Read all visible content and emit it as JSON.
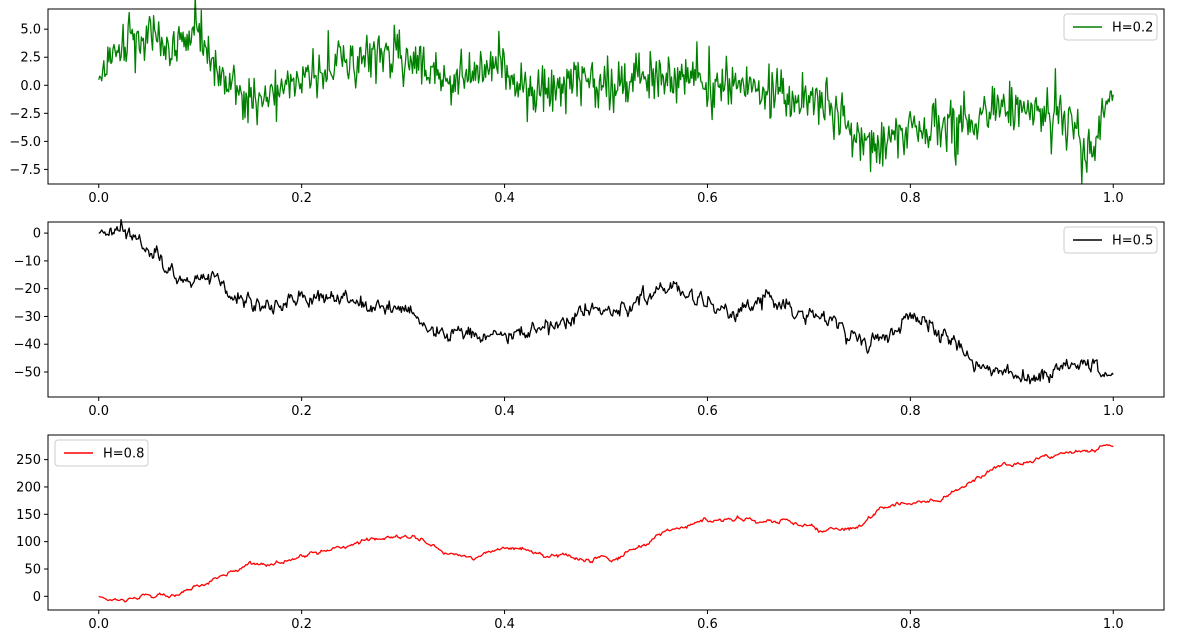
{
  "chart_data": [
    {
      "type": "line",
      "series": [
        {
          "name": "H=0.2",
          "color": "#008000",
          "x_range": [
            0,
            1
          ],
          "hurst": 0.2,
          "points": 1000,
          "anchors": [
            [
              0.0,
              0.5
            ],
            [
              0.01,
              2.5
            ],
            [
              0.03,
              3.5
            ],
            [
              0.05,
              5.0
            ],
            [
              0.07,
              3.0
            ],
            [
              0.095,
              5.2
            ],
            [
              0.12,
              1.0
            ],
            [
              0.15,
              -1.5
            ],
            [
              0.18,
              -0.5
            ],
            [
              0.2,
              0.5
            ],
            [
              0.23,
              1.5
            ],
            [
              0.26,
              2.5
            ],
            [
              0.3,
              3.0
            ],
            [
              0.33,
              1.0
            ],
            [
              0.36,
              0.5
            ],
            [
              0.4,
              1.5
            ],
            [
              0.42,
              -0.5
            ],
            [
              0.45,
              0.0
            ],
            [
              0.48,
              0.5
            ],
            [
              0.5,
              0.0
            ],
            [
              0.55,
              0.5
            ],
            [
              0.59,
              0.5
            ],
            [
              0.62,
              -0.5
            ],
            [
              0.66,
              -0.5
            ],
            [
              0.7,
              -1.5
            ],
            [
              0.72,
              -1.5
            ],
            [
              0.75,
              -5.0
            ],
            [
              0.8,
              -4.0
            ],
            [
              0.85,
              -3.5
            ],
            [
              0.88,
              -2.0
            ],
            [
              0.9,
              -1.5
            ],
            [
              0.93,
              -2.5
            ],
            [
              0.96,
              -3.0
            ],
            [
              0.975,
              -7.5
            ],
            [
              0.99,
              -2.5
            ],
            [
              1.0,
              -0.8
            ]
          ]
        }
      ],
      "legend_position": "upper right",
      "xlim": [
        -0.05,
        1.05
      ],
      "ylim": [
        -8.8,
        6.8
      ],
      "xticks": [
        0.0,
        0.2,
        0.4,
        0.6,
        0.8,
        1.0
      ],
      "xtick_labels": [
        "0.0",
        "0.2",
        "0.4",
        "0.6",
        "0.8",
        "1.0"
      ],
      "yticks": [
        5.0,
        2.5,
        0.0,
        -2.5,
        -5.0,
        -7.5
      ],
      "ytick_labels": [
        "5.0",
        "2.5",
        "0.0",
        "−2.5",
        "−5.0",
        "−7.5"
      ],
      "grid": false
    },
    {
      "type": "line",
      "series": [
        {
          "name": "H=0.5",
          "color": "#000000",
          "x_range": [
            0,
            1
          ],
          "hurst": 0.5,
          "points": 1000,
          "anchors": [
            [
              0.0,
              0.0
            ],
            [
              0.02,
              2.0
            ],
            [
              0.04,
              -2.0
            ],
            [
              0.06,
              -10.0
            ],
            [
              0.08,
              -18.0
            ],
            [
              0.11,
              -15.0
            ],
            [
              0.13,
              -22.0
            ],
            [
              0.17,
              -28.0
            ],
            [
              0.2,
              -22.0
            ],
            [
              0.25,
              -25.0
            ],
            [
              0.3,
              -27.0
            ],
            [
              0.33,
              -35.0
            ],
            [
              0.36,
              -36.0
            ],
            [
              0.4,
              -37.0
            ],
            [
              0.45,
              -33.0
            ],
            [
              0.48,
              -28.0
            ],
            [
              0.51,
              -27.0
            ],
            [
              0.56,
              -20.0
            ],
            [
              0.6,
              -25.0
            ],
            [
              0.63,
              -30.0
            ],
            [
              0.66,
              -22.0
            ],
            [
              0.69,
              -30.0
            ],
            [
              0.72,
              -30.0
            ],
            [
              0.76,
              -40.0
            ],
            [
              0.8,
              -29.0
            ],
            [
              0.84,
              -38.0
            ],
            [
              0.86,
              -46.0
            ],
            [
              0.89,
              -51.0
            ],
            [
              0.92,
              -53.0
            ],
            [
              0.95,
              -48.0
            ],
            [
              0.97,
              -46.0
            ],
            [
              0.99,
              -51.0
            ],
            [
              1.0,
              -51.0
            ]
          ]
        }
      ],
      "legend_position": "upper right",
      "xlim": [
        -0.05,
        1.05
      ],
      "ylim": [
        -59,
        4
      ],
      "xticks": [
        0.0,
        0.2,
        0.4,
        0.6,
        0.8,
        1.0
      ],
      "xtick_labels": [
        "0.0",
        "0.2",
        "0.4",
        "0.6",
        "0.8",
        "1.0"
      ],
      "yticks": [
        0,
        -10,
        -20,
        -30,
        -40,
        -50
      ],
      "ytick_labels": [
        "0",
        "−10",
        "−20",
        "−30",
        "−40",
        "−50"
      ],
      "grid": false
    },
    {
      "type": "line",
      "series": [
        {
          "name": "H=0.8",
          "color": "#ff0000",
          "x_range": [
            0,
            1
          ],
          "hurst": 0.8,
          "points": 1000,
          "anchors": [
            [
              0.0,
              0.0
            ],
            [
              0.02,
              -10.0
            ],
            [
              0.04,
              0.0
            ],
            [
              0.07,
              5.0
            ],
            [
              0.1,
              20.0
            ],
            [
              0.13,
              45.0
            ],
            [
              0.15,
              58.0
            ],
            [
              0.18,
              60.0
            ],
            [
              0.22,
              80.0
            ],
            [
              0.26,
              100.0
            ],
            [
              0.29,
              108.0
            ],
            [
              0.31,
              107.0
            ],
            [
              0.34,
              80.0
            ],
            [
              0.37,
              70.0
            ],
            [
              0.4,
              90.0
            ],
            [
              0.43,
              80.0
            ],
            [
              0.45,
              72.0
            ],
            [
              0.48,
              65.0
            ],
            [
              0.51,
              70.0
            ],
            [
              0.55,
              110.0
            ],
            [
              0.58,
              130.0
            ],
            [
              0.6,
              143.0
            ],
            [
              0.64,
              140.0
            ],
            [
              0.68,
              138.0
            ],
            [
              0.72,
              120.0
            ],
            [
              0.75,
              130.0
            ],
            [
              0.77,
              160.0
            ],
            [
              0.8,
              170.0
            ],
            [
              0.83,
              175.0
            ],
            [
              0.86,
              210.0
            ],
            [
              0.89,
              240.0
            ],
            [
              0.92,
              245.0
            ],
            [
              0.94,
              255.0
            ],
            [
              0.96,
              262.0
            ],
            [
              0.98,
              268.0
            ],
            [
              0.99,
              278.0
            ],
            [
              1.0,
              273.0
            ]
          ]
        }
      ],
      "legend_position": "upper left",
      "xlim": [
        -0.05,
        1.05
      ],
      "ylim": [
        -25,
        295
      ],
      "xticks": [
        0.0,
        0.2,
        0.4,
        0.6,
        0.8,
        1.0
      ],
      "xtick_labels": [
        "0.0",
        "0.2",
        "0.4",
        "0.6",
        "0.8",
        "1.0"
      ],
      "yticks": [
        250,
        200,
        150,
        100,
        50,
        0
      ],
      "ytick_labels": [
        "250",
        "200",
        "150",
        "100",
        "50",
        "0"
      ],
      "grid": false
    }
  ]
}
